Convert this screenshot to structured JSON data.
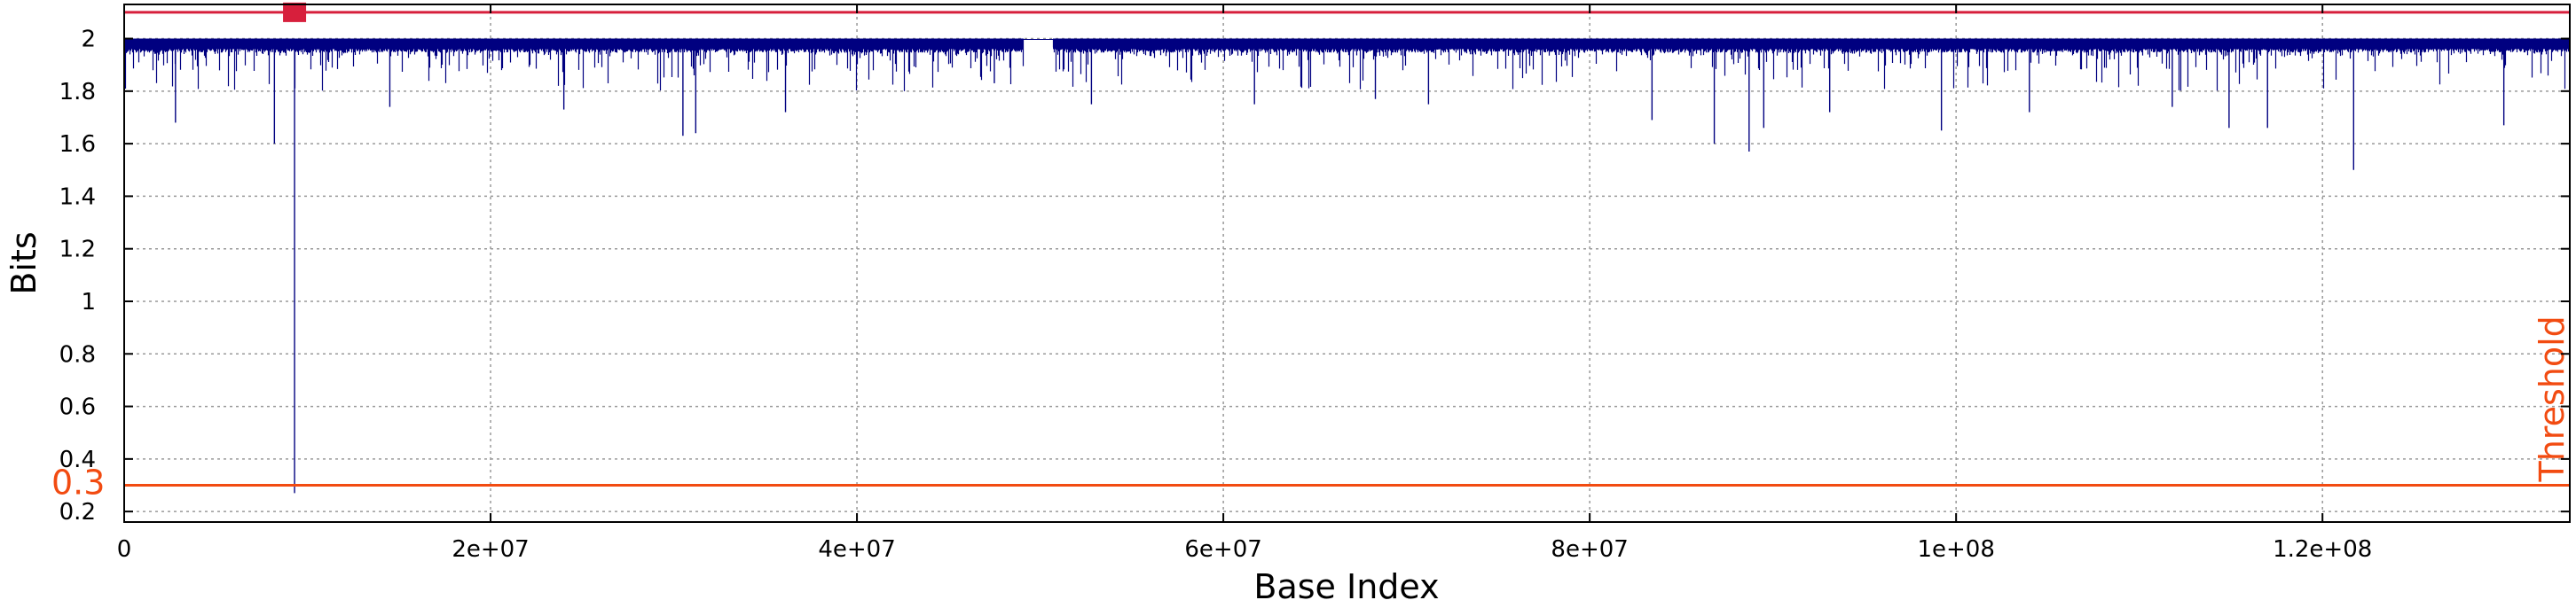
{
  "chart_data": {
    "type": "line",
    "title": "",
    "xlabel": "Base Index",
    "ylabel": "Bits",
    "xlim": [
      0,
      133500000
    ],
    "ylim": [
      0.16,
      2.13
    ],
    "xticks": [
      {
        "value": 0,
        "label": "0"
      },
      {
        "value": 20000000,
        "label": "2e+07"
      },
      {
        "value": 40000000,
        "label": "4e+07"
      },
      {
        "value": 60000000,
        "label": "6e+07"
      },
      {
        "value": 80000000,
        "label": "8e+07"
      },
      {
        "value": 100000000,
        "label": "1e+08"
      },
      {
        "value": 120000000,
        "label": "1.2e+08"
      }
    ],
    "yticks": [
      {
        "value": 0.2,
        "label": "0.2"
      },
      {
        "value": 0.4,
        "label": "0.4"
      },
      {
        "value": 0.6,
        "label": "0.6"
      },
      {
        "value": 0.8,
        "label": "0.8"
      },
      {
        "value": 1.0,
        "label": "1"
      },
      {
        "value": 1.2,
        "label": "1.2"
      },
      {
        "value": 1.4,
        "label": "1.4"
      },
      {
        "value": 1.6,
        "label": "1.6"
      },
      {
        "value": 1.8,
        "label": "1.8"
      },
      {
        "value": 2.0,
        "label": "2"
      }
    ],
    "grid": true,
    "series_color": "#000080",
    "signal": {
      "baseline_top": 2.0,
      "band_bottom": 1.96,
      "gap_x": [
        49100000,
        50700000
      ],
      "dips": [
        {
          "x": 9300000,
          "y": 0.27
        },
        {
          "x": 8200000,
          "y": 1.6
        },
        {
          "x": 2800000,
          "y": 1.68
        },
        {
          "x": 14500000,
          "y": 1.74
        },
        {
          "x": 24000000,
          "y": 1.73
        },
        {
          "x": 30500000,
          "y": 1.63
        },
        {
          "x": 31200000,
          "y": 1.64
        },
        {
          "x": 36100000,
          "y": 1.72
        },
        {
          "x": 47500000,
          "y": 1.83
        },
        {
          "x": 52800000,
          "y": 1.75
        },
        {
          "x": 61700000,
          "y": 1.75
        },
        {
          "x": 68300000,
          "y": 1.77
        },
        {
          "x": 71200000,
          "y": 1.75
        },
        {
          "x": 83400000,
          "y": 1.69
        },
        {
          "x": 86800000,
          "y": 1.6
        },
        {
          "x": 88700000,
          "y": 1.57
        },
        {
          "x": 89500000,
          "y": 1.66
        },
        {
          "x": 93100000,
          "y": 1.72
        },
        {
          "x": 99200000,
          "y": 1.65
        },
        {
          "x": 104000000,
          "y": 1.72
        },
        {
          "x": 111800000,
          "y": 1.74
        },
        {
          "x": 114900000,
          "y": 1.66
        },
        {
          "x": 117000000,
          "y": 1.66
        },
        {
          "x": 121700000,
          "y": 1.5
        },
        {
          "x": 129900000,
          "y": 1.67
        }
      ]
    },
    "reference_lines": [
      {
        "value": 2.1,
        "color": "#d71f3c",
        "label": ""
      },
      {
        "value": 0.3,
        "color": "#f24b11",
        "label": "Threshold",
        "value_label": "0.3"
      }
    ],
    "markers": [
      {
        "x": 9300000,
        "y": 2.1,
        "color": "#d71f3c",
        "shape": "square"
      }
    ]
  }
}
